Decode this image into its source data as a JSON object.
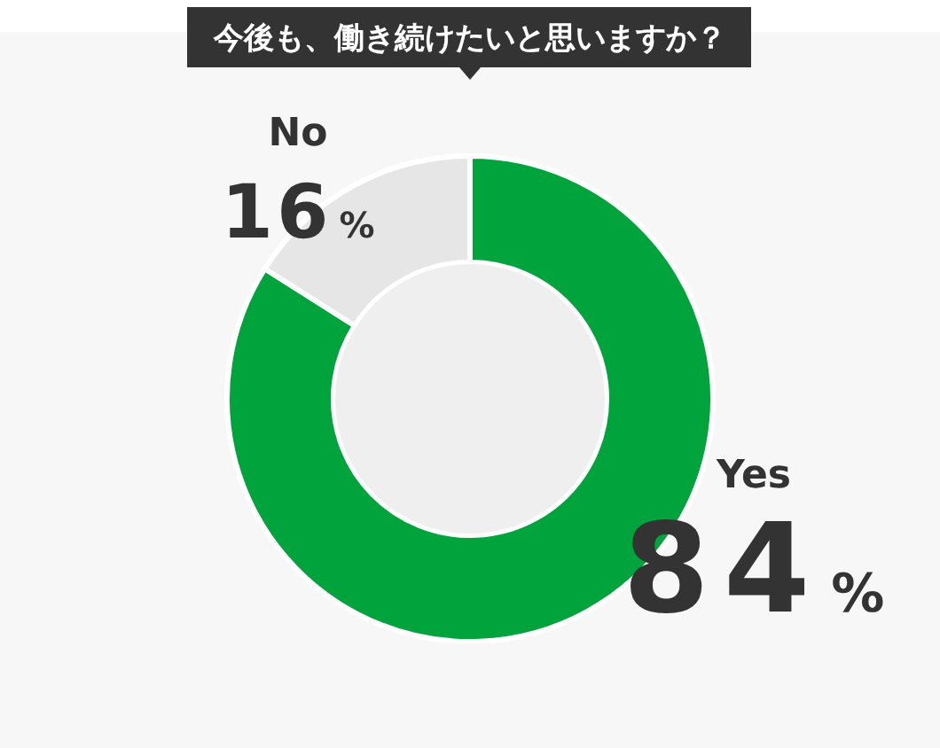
{
  "chart_data": {
    "type": "donut",
    "title": "今後も、働き続けたいと思いますか？",
    "categories": [
      "Yes",
      "No"
    ],
    "values": [
      84,
      16
    ],
    "colors": [
      "#00a33c",
      "#e6e6e6"
    ],
    "value_labels": [
      "84%",
      "16%"
    ]
  }
}
